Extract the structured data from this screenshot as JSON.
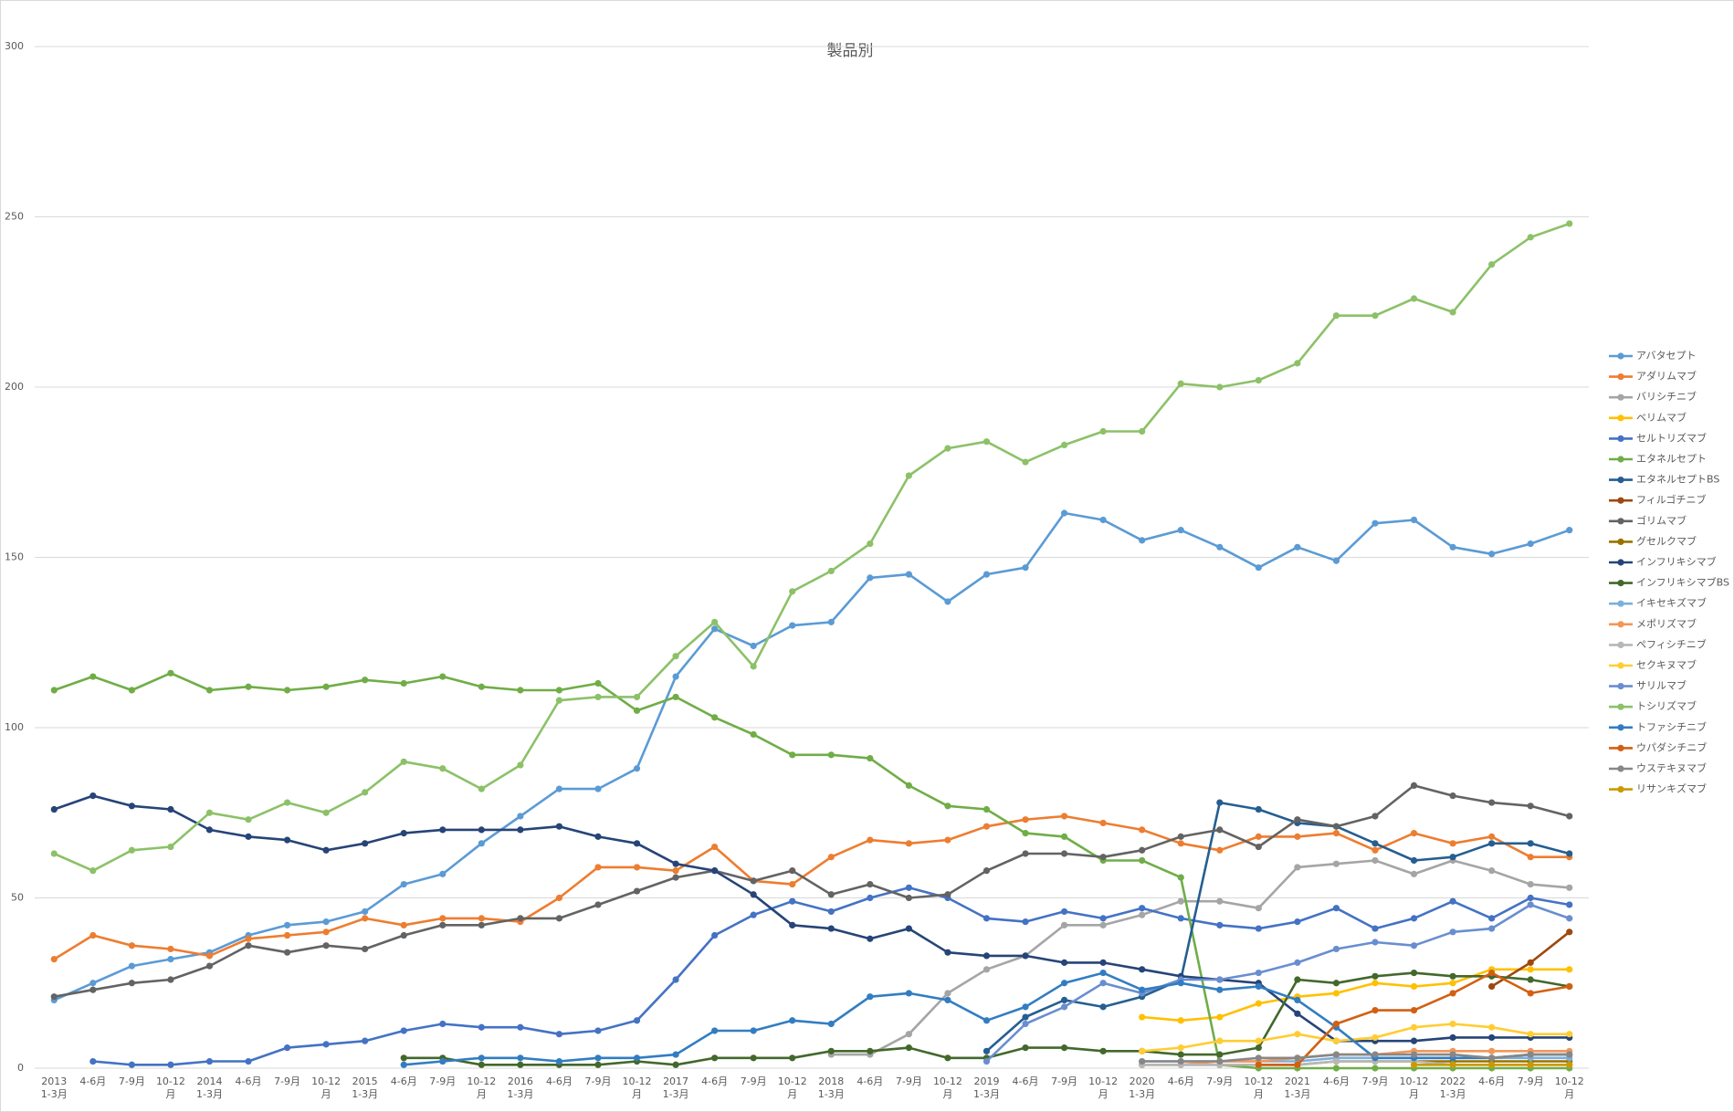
{
  "chart_data": {
    "type": "line",
    "title": "製品別",
    "categories": [
      "2013 1-3月",
      "4-6月",
      "7-9月",
      "10-12月",
      "2014 1-3月",
      "4-6月",
      "7-9月",
      "10-12月",
      "2015 1-3月",
      "4-6月",
      "7-9月",
      "10-12月",
      "2016 1-3月",
      "4-6月",
      "7-9月",
      "10-12月",
      "2017 1-3月",
      "4-6月",
      "7-9月",
      "10-12月",
      "2018 1-3月",
      "4-6月",
      "7-9月",
      "10-12月",
      "2019 1-3月",
      "4-6月",
      "7-9月",
      "10-12月",
      "2020 1-3月",
      "4-6月",
      "7-9月",
      "10-12月",
      "2021 1-3月",
      "4-6月",
      "7-9月",
      "10-12月",
      "2022 1-3月",
      "4-6月",
      "7-9月",
      "10-12月"
    ],
    "ylim": [
      0,
      300
    ],
    "yticks": [
      0,
      50,
      100,
      150,
      200,
      250,
      300
    ],
    "grid": true,
    "legend": "right",
    "series": [
      {
        "name": "アバタセプト",
        "color": "#5B9BD5",
        "values": [
          20,
          25,
          30,
          32,
          34,
          39,
          42,
          43,
          46,
          54,
          57,
          66,
          74,
          82,
          82,
          88,
          115,
          129,
          124,
          130,
          131,
          144,
          145,
          137,
          145,
          147,
          163,
          161,
          155,
          158,
          153,
          147,
          153,
          149,
          160,
          161,
          153,
          151,
          154,
          158
        ]
      },
      {
        "name": "アダリムマブ",
        "color": "#ED7D31",
        "values": [
          32,
          39,
          36,
          35,
          33,
          38,
          39,
          40,
          44,
          42,
          44,
          44,
          43,
          50,
          59,
          59,
          58,
          65,
          55,
          54,
          62,
          67,
          66,
          67,
          71,
          73,
          74,
          72,
          70,
          66,
          64,
          68,
          68,
          69,
          64,
          69,
          66,
          68,
          62,
          62
        ]
      },
      {
        "name": "バリシチニブ",
        "color": "#A5A5A5",
        "values": [
          null,
          null,
          null,
          null,
          null,
          null,
          null,
          null,
          null,
          null,
          null,
          null,
          null,
          null,
          null,
          null,
          null,
          null,
          null,
          null,
          4,
          4,
          10,
          22,
          29,
          33,
          42,
          42,
          45,
          49,
          49,
          47,
          59,
          60,
          61,
          57,
          61,
          58,
          54,
          53
        ]
      },
      {
        "name": "ベリムマブ",
        "color": "#FFC000",
        "values": [
          null,
          null,
          null,
          null,
          null,
          null,
          null,
          null,
          null,
          null,
          null,
          null,
          null,
          null,
          null,
          null,
          null,
          null,
          null,
          null,
          null,
          null,
          null,
          null,
          null,
          null,
          null,
          null,
          15,
          14,
          15,
          19,
          21,
          22,
          25,
          24,
          25,
          29,
          29,
          29
        ]
      },
      {
        "name": "セルトリズマブ",
        "color": "#4472C4",
        "values": [
          null,
          2,
          1,
          1,
          2,
          2,
          6,
          7,
          8,
          11,
          13,
          12,
          12,
          10,
          11,
          14,
          26,
          39,
          45,
          49,
          46,
          50,
          53,
          50,
          44,
          43,
          46,
          44,
          47,
          44,
          42,
          41,
          43,
          47,
          41,
          44,
          49,
          44,
          50,
          48
        ]
      },
      {
        "name": "エタネルセプト",
        "color": "#70AD47",
        "values": [
          111,
          115,
          111,
          116,
          111,
          112,
          111,
          112,
          114,
          113,
          115,
          112,
          111,
          111,
          113,
          105,
          109,
          103,
          98,
          92,
          92,
          91,
          83,
          77,
          76,
          69,
          68,
          61,
          61,
          56,
          1,
          0,
          0,
          0,
          0,
          0,
          0,
          0,
          0,
          0
        ]
      },
      {
        "name": "エタネルセプトBS",
        "color": "#255E91",
        "values": [
          null,
          null,
          null,
          null,
          null,
          null,
          null,
          null,
          null,
          null,
          null,
          null,
          null,
          null,
          null,
          null,
          null,
          null,
          null,
          null,
          null,
          null,
          null,
          null,
          5,
          15,
          20,
          18,
          21,
          26,
          78,
          76,
          72,
          71,
          66,
          61,
          62,
          66,
          66,
          63
        ]
      },
      {
        "name": "フィルゴチニブ",
        "color": "#9E480E",
        "values": [
          null,
          null,
          null,
          null,
          null,
          null,
          null,
          null,
          null,
          null,
          null,
          null,
          null,
          null,
          null,
          null,
          null,
          null,
          null,
          null,
          null,
          null,
          null,
          null,
          null,
          null,
          null,
          null,
          null,
          null,
          null,
          null,
          null,
          null,
          null,
          null,
          null,
          24,
          31,
          40
        ]
      },
      {
        "name": "ゴリムマブ",
        "color": "#636363",
        "values": [
          21,
          23,
          25,
          26,
          30,
          36,
          34,
          36,
          35,
          39,
          42,
          42,
          44,
          44,
          48,
          52,
          56,
          58,
          55,
          58,
          51,
          54,
          50,
          51,
          58,
          63,
          63,
          62,
          64,
          68,
          70,
          65,
          73,
          71,
          74,
          83,
          80,
          78,
          77,
          74
        ]
      },
      {
        "name": "グセルクマブ",
        "color": "#997300",
        "values": [
          null,
          null,
          null,
          null,
          null,
          null,
          null,
          null,
          null,
          null,
          null,
          null,
          null,
          null,
          null,
          null,
          null,
          null,
          null,
          null,
          null,
          null,
          null,
          null,
          null,
          null,
          null,
          null,
          1,
          1,
          1,
          1,
          1,
          2,
          2,
          2,
          2,
          2,
          2,
          2
        ]
      },
      {
        "name": "インフリキシマブ",
        "color": "#264478",
        "values": [
          76,
          80,
          77,
          76,
          70,
          68,
          67,
          64,
          66,
          69,
          70,
          70,
          70,
          71,
          68,
          66,
          60,
          58,
          51,
          42,
          41,
          38,
          41,
          34,
          33,
          33,
          31,
          31,
          29,
          27,
          26,
          25,
          16,
          8,
          8,
          8,
          9,
          9,
          9,
          9
        ]
      },
      {
        "name": "インフリキシマブBS",
        "color": "#43682B",
        "values": [
          null,
          null,
          null,
          null,
          null,
          null,
          null,
          null,
          null,
          3,
          3,
          1,
          1,
          1,
          1,
          2,
          1,
          3,
          3,
          3,
          5,
          5,
          6,
          3,
          3,
          6,
          6,
          5,
          5,
          4,
          4,
          6,
          26,
          25,
          27,
          28,
          27,
          27,
          26,
          24
        ]
      },
      {
        "name": "イキセキズマブ",
        "color": "#7CAFDD",
        "values": [
          null,
          null,
          null,
          null,
          null,
          null,
          null,
          null,
          null,
          null,
          null,
          null,
          null,
          null,
          null,
          null,
          null,
          null,
          null,
          null,
          null,
          null,
          null,
          null,
          null,
          null,
          null,
          null,
          2,
          2,
          2,
          2,
          2,
          3,
          3,
          3,
          3,
          3,
          3,
          3
        ]
      },
      {
        "name": "メポリズマブ",
        "color": "#F1975A",
        "values": [
          null,
          null,
          null,
          null,
          null,
          null,
          null,
          null,
          null,
          null,
          null,
          null,
          null,
          null,
          null,
          null,
          null,
          null,
          null,
          null,
          null,
          null,
          null,
          null,
          null,
          null,
          null,
          null,
          1,
          1,
          2,
          2,
          3,
          4,
          4,
          5,
          5,
          5,
          5,
          5
        ]
      },
      {
        "name": "ペフィシチニブ",
        "color": "#B7B7B7",
        "values": [
          null,
          null,
          null,
          null,
          null,
          null,
          null,
          null,
          null,
          null,
          null,
          null,
          null,
          null,
          null,
          null,
          null,
          null,
          null,
          null,
          null,
          null,
          null,
          null,
          null,
          null,
          null,
          null,
          1,
          1,
          1,
          1,
          1,
          2,
          2,
          2,
          1,
          1,
          1,
          1
        ]
      },
      {
        "name": "セクキヌマブ",
        "color": "#FFCD33",
        "values": [
          null,
          null,
          null,
          null,
          null,
          null,
          null,
          null,
          null,
          null,
          null,
          null,
          null,
          null,
          null,
          null,
          null,
          null,
          null,
          null,
          null,
          null,
          null,
          null,
          null,
          null,
          null,
          null,
          5,
          6,
          8,
          8,
          10,
          8,
          9,
          12,
          13,
          12,
          10,
          10
        ]
      },
      {
        "name": "サリルマブ",
        "color": "#698ED0",
        "values": [
          null,
          null,
          null,
          null,
          null,
          null,
          null,
          null,
          null,
          null,
          null,
          null,
          null,
          null,
          null,
          null,
          null,
          null,
          null,
          null,
          null,
          null,
          null,
          null,
          2,
          13,
          18,
          25,
          22,
          26,
          26,
          28,
          31,
          35,
          37,
          36,
          40,
          41,
          48,
          44
        ]
      },
      {
        "name": "トシリズマブ",
        "color": "#8CC168",
        "values": [
          63,
          58,
          64,
          65,
          75,
          73,
          78,
          75,
          81,
          90,
          88,
          82,
          89,
          108,
          109,
          109,
          121,
          131,
          118,
          140,
          146,
          154,
          174,
          182,
          184,
          178,
          183,
          187,
          187,
          201,
          200,
          202,
          207,
          221,
          221,
          226,
          222,
          236,
          244,
          248
        ]
      },
      {
        "name": "トファシチニブ",
        "color": "#327DC2",
        "values": [
          null,
          null,
          null,
          null,
          null,
          null,
          null,
          null,
          null,
          1,
          2,
          3,
          3,
          2,
          3,
          3,
          4,
          11,
          11,
          14,
          13,
          21,
          22,
          20,
          14,
          18,
          25,
          28,
          23,
          25,
          23,
          24,
          20,
          12,
          3,
          3,
          3,
          3,
          4,
          4
        ]
      },
      {
        "name": "ウパダシチニブ",
        "color": "#D26012",
        "values": [
          null,
          null,
          null,
          null,
          null,
          null,
          null,
          null,
          null,
          null,
          null,
          null,
          null,
          null,
          null,
          null,
          null,
          null,
          null,
          null,
          null,
          null,
          null,
          null,
          null,
          null,
          null,
          null,
          null,
          null,
          null,
          1,
          1,
          13,
          17,
          17,
          22,
          28,
          22,
          24
        ]
      },
      {
        "name": "ウステキヌマブ",
        "color": "#878787",
        "values": [
          null,
          null,
          null,
          null,
          null,
          null,
          null,
          null,
          null,
          null,
          null,
          null,
          null,
          null,
          null,
          null,
          null,
          null,
          null,
          null,
          null,
          null,
          null,
          null,
          null,
          null,
          null,
          null,
          2,
          2,
          2,
          3,
          3,
          4,
          4,
          4,
          4,
          3,
          4,
          4
        ]
      },
      {
        "name": "リサンキズマブ",
        "color": "#CC9A00",
        "values": [
          null,
          null,
          null,
          null,
          null,
          null,
          null,
          null,
          null,
          null,
          null,
          null,
          null,
          null,
          null,
          null,
          null,
          null,
          null,
          null,
          null,
          null,
          null,
          null,
          null,
          null,
          null,
          null,
          null,
          null,
          null,
          null,
          null,
          null,
          null,
          1,
          1,
          1,
          1,
          1
        ]
      }
    ]
  }
}
